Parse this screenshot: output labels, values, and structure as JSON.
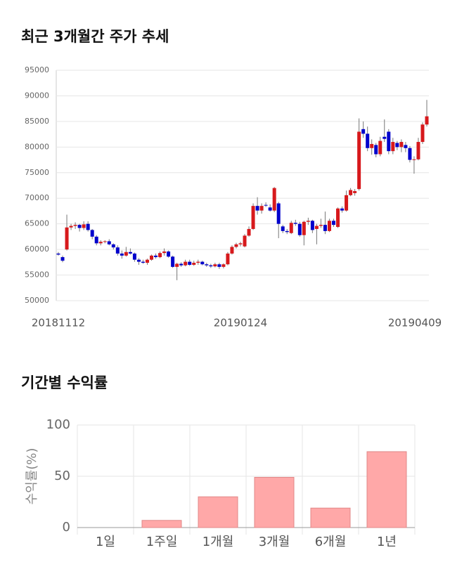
{
  "chart_data": [
    {
      "type": "candlestick",
      "title": "최근 3개월간 주가 추세",
      "categories": [
        "20181112",
        null,
        null,
        null,
        null,
        null,
        null,
        null,
        null,
        null,
        null,
        null,
        null,
        null,
        null,
        null,
        null,
        null,
        null,
        null,
        null,
        null,
        null,
        null,
        null,
        null,
        null,
        null,
        null,
        null,
        null,
        null,
        null,
        null,
        null,
        null,
        null,
        null,
        null,
        null,
        null,
        null,
        null,
        "20190124",
        null,
        null,
        null,
        null,
        null,
        null,
        null,
        null,
        null,
        null,
        null,
        null,
        null,
        null,
        null,
        null,
        null,
        null,
        null,
        null,
        null,
        null,
        null,
        null,
        null,
        null,
        null,
        null,
        null,
        null,
        null,
        null,
        null,
        null,
        null,
        null,
        null,
        null,
        null,
        null,
        null,
        null,
        null,
        "20190409"
      ],
      "open": [
        59200,
        58500,
        60000,
        64300,
        64600,
        64800,
        64200,
        65000,
        63800,
        62500,
        61200,
        61500,
        61600,
        61000,
        60400,
        59200,
        58800,
        59500,
        59200,
        58000,
        57600,
        57400,
        58000,
        58800,
        58500,
        59300,
        59600,
        58600,
        56600,
        57200,
        56900,
        57600,
        57000,
        57400,
        57600,
        57100,
        56900,
        56700,
        57100,
        56600,
        57100,
        59200,
        60500,
        61000,
        60600,
        62700,
        64000,
        68500,
        67600,
        68700,
        68200,
        67600,
        69000,
        64500,
        63600,
        63200,
        65200,
        65000,
        62800,
        65400,
        65600,
        64000,
        64600,
        64800,
        63600,
        65600,
        64400,
        68000,
        67600,
        70600,
        71000,
        71800,
        83500,
        82600,
        79800,
        80400,
        78600,
        82000,
        83000,
        79200,
        80800,
        80000,
        80400,
        79800,
        77500,
        77600,
        81000,
        84400
      ],
      "high": [
        59500,
        58800,
        66800,
        65000,
        65300,
        65000,
        65500,
        65500,
        64000,
        62800,
        61800,
        61800,
        62000,
        61200,
        60800,
        59800,
        60500,
        60200,
        59400,
        58300,
        58000,
        58200,
        59000,
        59200,
        59600,
        60200,
        59800,
        58800,
        57400,
        57500,
        58000,
        58000,
        57800,
        58000,
        57800,
        57400,
        57200,
        57400,
        57400,
        57300,
        59500,
        60800,
        61300,
        61500,
        63000,
        64500,
        69000,
        70200,
        69000,
        69200,
        68800,
        72200,
        69300,
        64800,
        64000,
        65600,
        65800,
        65400,
        65600,
        66200,
        65800,
        65000,
        66000,
        67400,
        66000,
        66000,
        68200,
        68400,
        71500,
        72000,
        71800,
        85600,
        85000,
        84000,
        81500,
        80800,
        82000,
        85400,
        83500,
        81800,
        81200,
        81500,
        81000,
        80200,
        78200,
        81800,
        84800,
        89200
      ],
      "low": [
        58800,
        57500,
        59800,
        63800,
        64000,
        63500,
        63800,
        63500,
        62000,
        60800,
        60800,
        61200,
        60800,
        60000,
        58800,
        58200,
        58600,
        59000,
        57600,
        57000,
        57200,
        57000,
        57800,
        58200,
        58300,
        58800,
        58400,
        56400,
        54000,
        56600,
        56700,
        56800,
        56800,
        57000,
        56900,
        56600,
        56400,
        56500,
        56200,
        56300,
        56900,
        59000,
        60200,
        60600,
        60400,
        62500,
        63800,
        66800,
        67000,
        68300,
        67400,
        67300,
        62200,
        63200,
        63000,
        63000,
        64600,
        62500,
        60800,
        64800,
        63200,
        61000,
        64200,
        63000,
        63400,
        64400,
        64200,
        67200,
        67400,
        70400,
        70500,
        71500,
        81800,
        79200,
        78500,
        78000,
        78200,
        81000,
        78600,
        78600,
        79400,
        79000,
        79000,
        77000,
        74800,
        77400,
        80600,
        84000
      ],
      "close": [
        59000,
        57800,
        64300,
        64600,
        64800,
        64200,
        64900,
        63800,
        62500,
        61200,
        61500,
        61600,
        61000,
        60400,
        59200,
        58800,
        59500,
        59200,
        58000,
        57600,
        57400,
        58000,
        58800,
        58500,
        59300,
        59600,
        58600,
        56600,
        57200,
        56900,
        57600,
        57000,
        57400,
        57600,
        57100,
        56900,
        56700,
        57100,
        56600,
        57100,
        59200,
        60500,
        61000,
        61200,
        62700,
        64000,
        68500,
        67600,
        68500,
        68600,
        67600,
        72000,
        65000,
        63600,
        63400,
        65200,
        65000,
        62800,
        65400,
        65600,
        63800,
        64600,
        64800,
        63600,
        65600,
        64800,
        68000,
        67600,
        70600,
        71600,
        71400,
        83000,
        82600,
        79800,
        80600,
        78600,
        81200,
        81600,
        79200,
        81000,
        80000,
        81000,
        79800,
        77500,
        77600,
        81000,
        84400,
        86000
      ],
      "up_color": "#d7191c",
      "down_color": "#0000cc",
      "ylim": [
        50000,
        95000
      ],
      "yticks": [
        50000,
        55000,
        60000,
        65000,
        70000,
        75000,
        80000,
        85000,
        90000,
        95000
      ],
      "grid": true
    },
    {
      "type": "bar",
      "title": "기간별 수익률",
      "ylabel": "수익률(%)",
      "categories": [
        "1일",
        "1주일",
        "1개월",
        "3개월",
        "6개월",
        "1년"
      ],
      "values": [
        0,
        7,
        30,
        49,
        19,
        74
      ],
      "color": "#ffa8a8",
      "ylim": [
        0,
        100
      ],
      "yticks": [
        0,
        50,
        100
      ],
      "grid": true
    }
  ]
}
